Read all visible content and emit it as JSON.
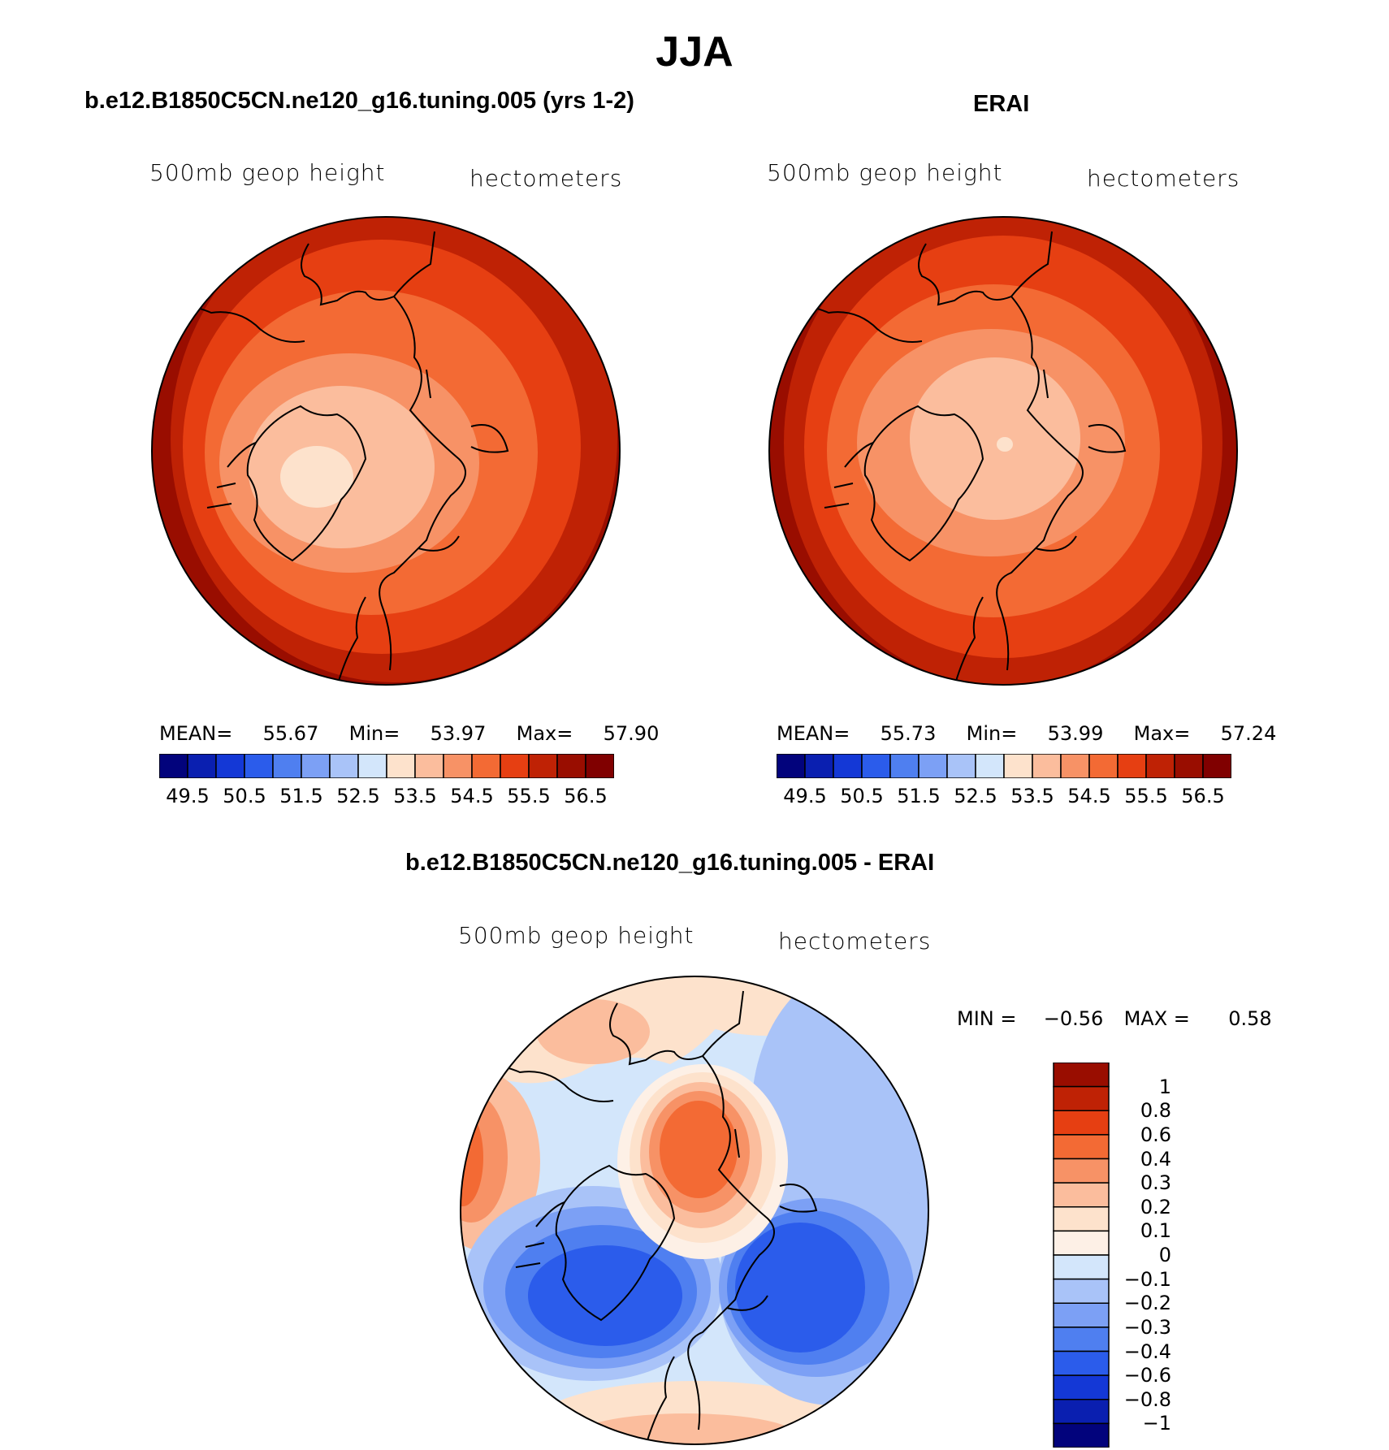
{
  "figure": {
    "title": "JJA"
  },
  "panels": [
    {
      "title": "b.e12.B1850C5CN.ne120_g16.tuning.005 (yrs 1-2)",
      "left_label": "500mb  geop  height",
      "right_label": "hectometers",
      "stats": {
        "mean_label": "MEAN=",
        "mean": "55.67",
        "min_label": "Min=",
        "min": "53.97",
        "max_label": "Max=",
        "max": "57.90"
      }
    },
    {
      "title": "ERAI",
      "left_label": "500mb  geop  height",
      "right_label": "hectometers",
      "stats": {
        "mean_label": "MEAN=",
        "mean": "55.73",
        "min_label": "Min=",
        "min": "53.99",
        "max_label": "Max=",
        "max": "57.24"
      }
    },
    {
      "title": "b.e12.B1850C5CN.ne120_g16.tuning.005 - ERAI",
      "left_label": "500mb  geop  height",
      "right_label": "hectometers",
      "stats": {
        "min_label": "MIN =",
        "min": "−0.56",
        "max_label": "MAX =",
        "max": "0.58"
      }
    }
  ],
  "chart_data": [
    {
      "type": "map-contour",
      "panel": "model",
      "projection": "north polar stereographic",
      "variable": "500mb geop height",
      "units": "hectometers",
      "mean": 55.67,
      "min": 53.97,
      "max": 57.9,
      "colorbar": {
        "orientation": "horizontal",
        "tick_labels": [
          "49.5",
          "50.5",
          "51.5",
          "52.5",
          "53.5",
          "54.5",
          "55.5",
          "56.5"
        ],
        "levels": [
          49.5,
          50,
          50.5,
          51,
          51.5,
          52,
          52.5,
          53,
          53.5,
          54,
          54.5,
          55,
          55.5,
          56,
          56.5
        ],
        "colors": [
          "#02037c",
          "#0a1fb0",
          "#1438d6",
          "#2b5ceb",
          "#4f7ff0",
          "#7ca0f5",
          "#a9c3f8",
          "#d3e6fb",
          "#fde2cc",
          "#fbbd9d",
          "#f79266",
          "#f36a34",
          "#e63f12",
          "#bf2205",
          "#990d00",
          "#800000"
        ]
      }
    },
    {
      "type": "map-contour",
      "panel": "ERAI",
      "projection": "north polar stereographic",
      "variable": "500mb geop height",
      "units": "hectometers",
      "mean": 55.73,
      "min": 53.99,
      "max": 57.24,
      "colorbar": {
        "orientation": "horizontal",
        "tick_labels": [
          "49.5",
          "50.5",
          "51.5",
          "52.5",
          "53.5",
          "54.5",
          "55.5",
          "56.5"
        ],
        "levels": [
          49.5,
          50,
          50.5,
          51,
          51.5,
          52,
          52.5,
          53,
          53.5,
          54,
          54.5,
          55,
          55.5,
          56,
          56.5
        ],
        "colors": [
          "#02037c",
          "#0a1fb0",
          "#1438d6",
          "#2b5ceb",
          "#4f7ff0",
          "#7ca0f5",
          "#a9c3f8",
          "#d3e6fb",
          "#fde2cc",
          "#fbbd9d",
          "#f79266",
          "#f36a34",
          "#e63f12",
          "#bf2205",
          "#990d00",
          "#800000"
        ]
      }
    },
    {
      "type": "map-contour",
      "panel": "difference",
      "projection": "north polar stereographic",
      "variable": "500mb geop height",
      "units": "hectometers",
      "min": -0.56,
      "max": 0.58,
      "colorbar": {
        "orientation": "vertical",
        "tick_labels": [
          "1",
          "0.8",
          "0.6",
          "0.4",
          "0.3",
          "0.2",
          "0.1",
          "0",
          "−0.1",
          "−0.2",
          "−0.3",
          "−0.4",
          "−0.6",
          "−0.8",
          "−1"
        ],
        "levels": [
          1,
          0.8,
          0.6,
          0.4,
          0.3,
          0.2,
          0.1,
          0,
          -0.1,
          -0.2,
          -0.3,
          -0.4,
          -0.6,
          -0.8,
          -1
        ],
        "colors": [
          "#990d00",
          "#bf2205",
          "#e63f12",
          "#f36a34",
          "#f79266",
          "#fbbd9d",
          "#fde2cc",
          "#fdf0e6",
          "#d3e6fb",
          "#a9c3f8",
          "#7ca0f5",
          "#4f7ff0",
          "#2b5ceb",
          "#1438d6",
          "#0a1fb0",
          "#02037c"
        ]
      }
    }
  ]
}
